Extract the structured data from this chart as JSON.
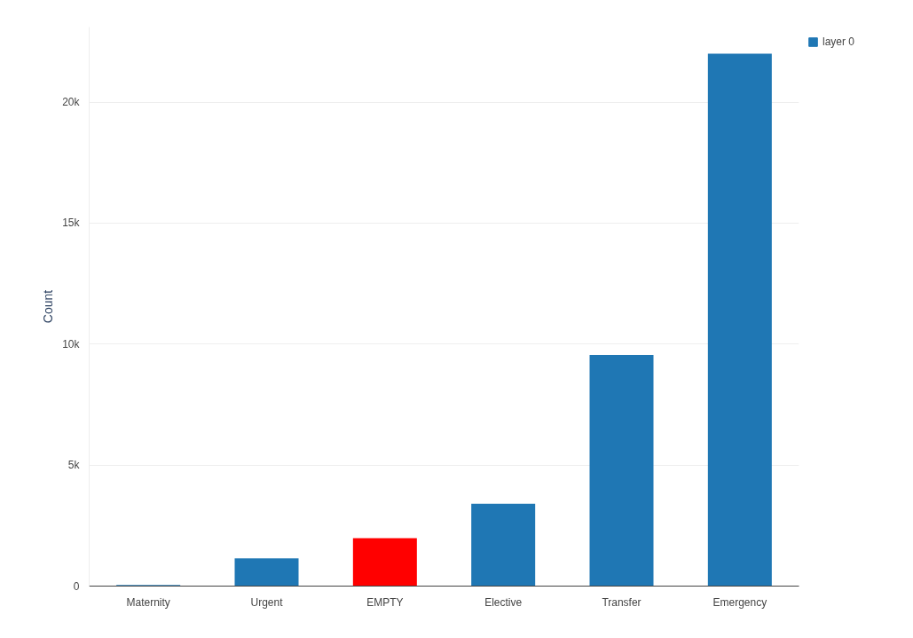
{
  "chart_data": {
    "type": "bar",
    "ylabel": "Count",
    "categories": [
      "Maternity",
      "Urgent",
      "EMPTY",
      "Elective",
      "Transfer",
      "Emergency"
    ],
    "series": [
      {
        "name": "layer 0",
        "color": "#1f77b4",
        "colors": [
          "#1f77b4",
          "#1f77b4",
          "#ff0000",
          "#1f77b4",
          "#1f77b4",
          "#1f77b4"
        ],
        "values": [
          50,
          1150,
          1980,
          3400,
          9550,
          22000
        ]
      }
    ],
    "ylim": [
      0,
      23100
    ],
    "yticks": [
      {
        "value": 0,
        "label": "0"
      },
      {
        "value": 5000,
        "label": "5k"
      },
      {
        "value": 10000,
        "label": "10k"
      },
      {
        "value": 15000,
        "label": "15k"
      },
      {
        "value": 20000,
        "label": "20k"
      }
    ],
    "grid": "y",
    "legend": "top right"
  }
}
